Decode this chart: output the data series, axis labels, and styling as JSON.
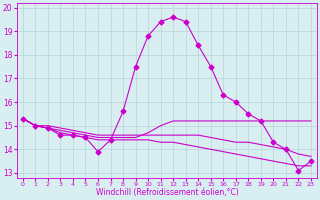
{
  "xlabel": "Windchill (Refroidissement éolien,°C)",
  "background_color": "#d8eef0",
  "grid_color": "#b8d4d8",
  "line_color": "#cc00cc",
  "x_ticks": [
    0,
    1,
    2,
    3,
    4,
    5,
    6,
    7,
    8,
    9,
    10,
    11,
    12,
    13,
    14,
    15,
    16,
    17,
    18,
    19,
    20,
    21,
    22,
    23
  ],
  "ylim": [
    12.8,
    20.2
  ],
  "xlim": [
    -0.5,
    23.5
  ],
  "y_ticks": [
    13,
    14,
    15,
    16,
    17,
    18,
    19,
    20
  ],
  "series": [
    {
      "x": [
        0,
        1,
        2,
        3,
        4,
        5,
        6,
        7,
        8,
        9,
        10,
        11,
        12,
        13,
        14,
        15,
        16,
        17,
        18,
        19,
        20,
        21,
        22,
        23
      ],
      "y": [
        15.3,
        15.0,
        14.9,
        14.6,
        14.6,
        14.5,
        13.9,
        14.4,
        15.6,
        17.5,
        18.8,
        19.4,
        19.6,
        19.4,
        18.4,
        17.5,
        16.3,
        16.0,
        15.5,
        15.2,
        14.3,
        14.0,
        13.1,
        13.5
      ],
      "marker": true
    },
    {
      "x": [
        0,
        1,
        2,
        3,
        4,
        5,
        6,
        7,
        8,
        9,
        10,
        11,
        12,
        13,
        14,
        15,
        16,
        17,
        18,
        19,
        20,
        21,
        22,
        23
      ],
      "y": [
        15.3,
        15.0,
        14.9,
        14.8,
        14.7,
        14.6,
        14.5,
        14.5,
        14.5,
        14.5,
        14.7,
        15.0,
        15.2,
        15.2,
        15.2,
        15.2,
        15.2,
        15.2,
        15.2,
        15.2,
        15.2,
        15.2,
        15.2,
        15.2
      ],
      "marker": false
    },
    {
      "x": [
        0,
        1,
        2,
        3,
        4,
        5,
        6,
        7,
        8,
        9,
        10,
        11,
        12,
        13,
        14,
        15,
        16,
        17,
        18,
        19,
        20,
        21,
        22,
        23
      ],
      "y": [
        15.3,
        15.0,
        14.9,
        14.7,
        14.6,
        14.5,
        14.4,
        14.4,
        14.4,
        14.4,
        14.4,
        14.3,
        14.3,
        14.2,
        14.1,
        14.0,
        13.9,
        13.8,
        13.7,
        13.6,
        13.5,
        13.4,
        13.3,
        13.3
      ],
      "marker": false
    },
    {
      "x": [
        0,
        1,
        2,
        3,
        4,
        5,
        6,
        7,
        8,
        9,
        10,
        11,
        12,
        13,
        14,
        15,
        16,
        17,
        18,
        19,
        20,
        21,
        22,
        23
      ],
      "y": [
        15.3,
        15.0,
        15.0,
        14.9,
        14.8,
        14.7,
        14.6,
        14.6,
        14.6,
        14.6,
        14.6,
        14.6,
        14.6,
        14.6,
        14.6,
        14.5,
        14.4,
        14.3,
        14.3,
        14.2,
        14.1,
        14.0,
        13.8,
        13.7
      ],
      "marker": false
    }
  ]
}
